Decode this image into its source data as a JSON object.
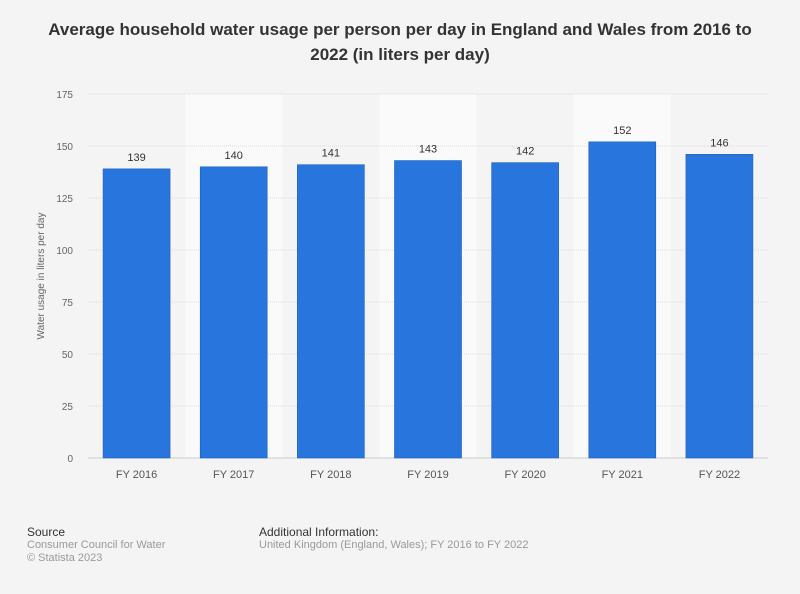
{
  "chart_data": {
    "type": "bar",
    "title": "Average household water usage per person per day in England and Wales from 2016 to 2022 (in liters per day)",
    "categories": [
      "FY 2016",
      "FY 2017",
      "FY 2018",
      "FY 2019",
      "FY 2020",
      "FY 2021",
      "FY 2022"
    ],
    "values": [
      139,
      140,
      141,
      143,
      142,
      152,
      146
    ],
    "xlabel": "",
    "ylabel": "Water usage in liters per day",
    "ylim": [
      0,
      175
    ],
    "yticks": [
      0,
      25,
      50,
      75,
      100,
      125,
      150,
      175
    ],
    "grid": true,
    "bar_color": "#2876dd"
  },
  "footer": {
    "source_label": "Source",
    "source": "Consumer Council for Water",
    "copyright": "© Statista 2023",
    "info_label": "Additional Information:",
    "info": "United Kingdom (England, Wales); FY 2016 to FY 2022"
  }
}
